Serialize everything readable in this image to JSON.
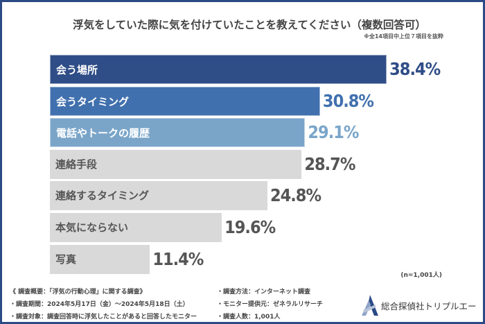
{
  "chart_data": {
    "type": "bar",
    "orientation": "horizontal",
    "title": "浮気をしていた際に気を付けていたことを教えてください（複数回答可）",
    "subtitle": "※全14項目中上位７項目を抜粋",
    "categories": [
      "会う場所",
      "会うタイミング",
      "電話やトークの履歴",
      "連絡手段",
      "連絡するタイミング",
      "本気にならない",
      "写真"
    ],
    "values": [
      38.4,
      30.8,
      29.1,
      28.7,
      24.8,
      19.6,
      11.4
    ],
    "value_labels": [
      "38.4%",
      "30.8%",
      "29.1%",
      "28.7%",
      "24.8%",
      "19.6%",
      "11.4%"
    ],
    "unit": "%",
    "xlim": [
      0,
      40
    ],
    "grid": false,
    "colors": [
      "#2f4d87",
      "#4170ae",
      "#7aa5c9",
      "#d9d9d9",
      "#d9d9d9",
      "#d9d9d9",
      "#d9d9d9"
    ],
    "value_colors": [
      "#2f4d87",
      "#4170ae",
      "#7aa5c9",
      "#555555",
      "#555555",
      "#555555",
      "#555555"
    ],
    "label_colors": [
      "#ffffff",
      "#ffffff",
      "#ffffff",
      "#555555",
      "#555555",
      "#555555",
      "#555555"
    ]
  },
  "sample_note": "(n=1,001人)",
  "footer": {
    "lines_left": [
      "《 調査概要：「浮気の行動心理」に関する調査》",
      "・調査期間：2024年5月17日（金）〜2024年5月18日（土）",
      "・調査対象：調査回答時に浮気したことがあると回答したモニター"
    ],
    "lines_right": [
      "・調査方法：インターネット調査",
      "・モニター提供元：ゼネラルリサーチ",
      "・調査人数：1,001人"
    ],
    "logo_text": "総合探偵社トリプルエー"
  },
  "accent_color": "#2b4a86"
}
